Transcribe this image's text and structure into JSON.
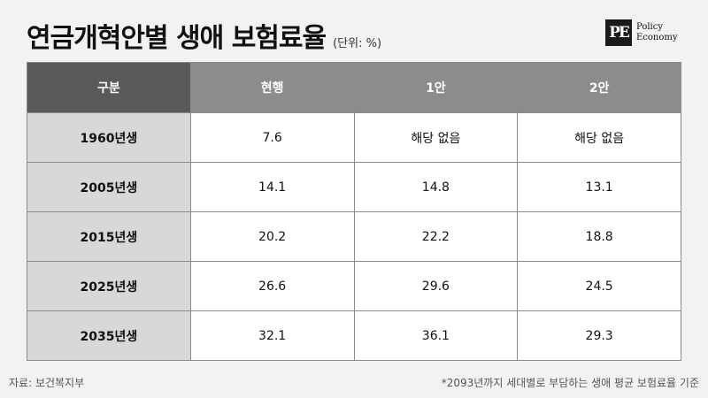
{
  "header": {
    "title": "연금개혁안별 생애 보험료율",
    "unit": "(단위: %)"
  },
  "logo": {
    "mark": "PE",
    "line1": "Policy",
    "line2": "Economy"
  },
  "table": {
    "columns": [
      "구분",
      "현행",
      "1안",
      "2안"
    ],
    "rows": [
      [
        "1960년생",
        "7.6",
        "해당 없음",
        "해당 없음"
      ],
      [
        "2005년생",
        "14.1",
        "14.8",
        "13.1"
      ],
      [
        "2015년생",
        "20.2",
        "22.2",
        "18.8"
      ],
      [
        "2025년생",
        "26.6",
        "29.6",
        "24.5"
      ],
      [
        "2035년생",
        "32.1",
        "36.1",
        "29.3"
      ]
    ]
  },
  "footer": {
    "source": "자료: 보건복지부",
    "note": "*2093년까지 세대별로 부담하는 생애 평균 보험료율 기준"
  },
  "colors": {
    "header_first": "#5a5a5a",
    "header": "#8c8c8c",
    "row_head": "#d8d8d8"
  }
}
